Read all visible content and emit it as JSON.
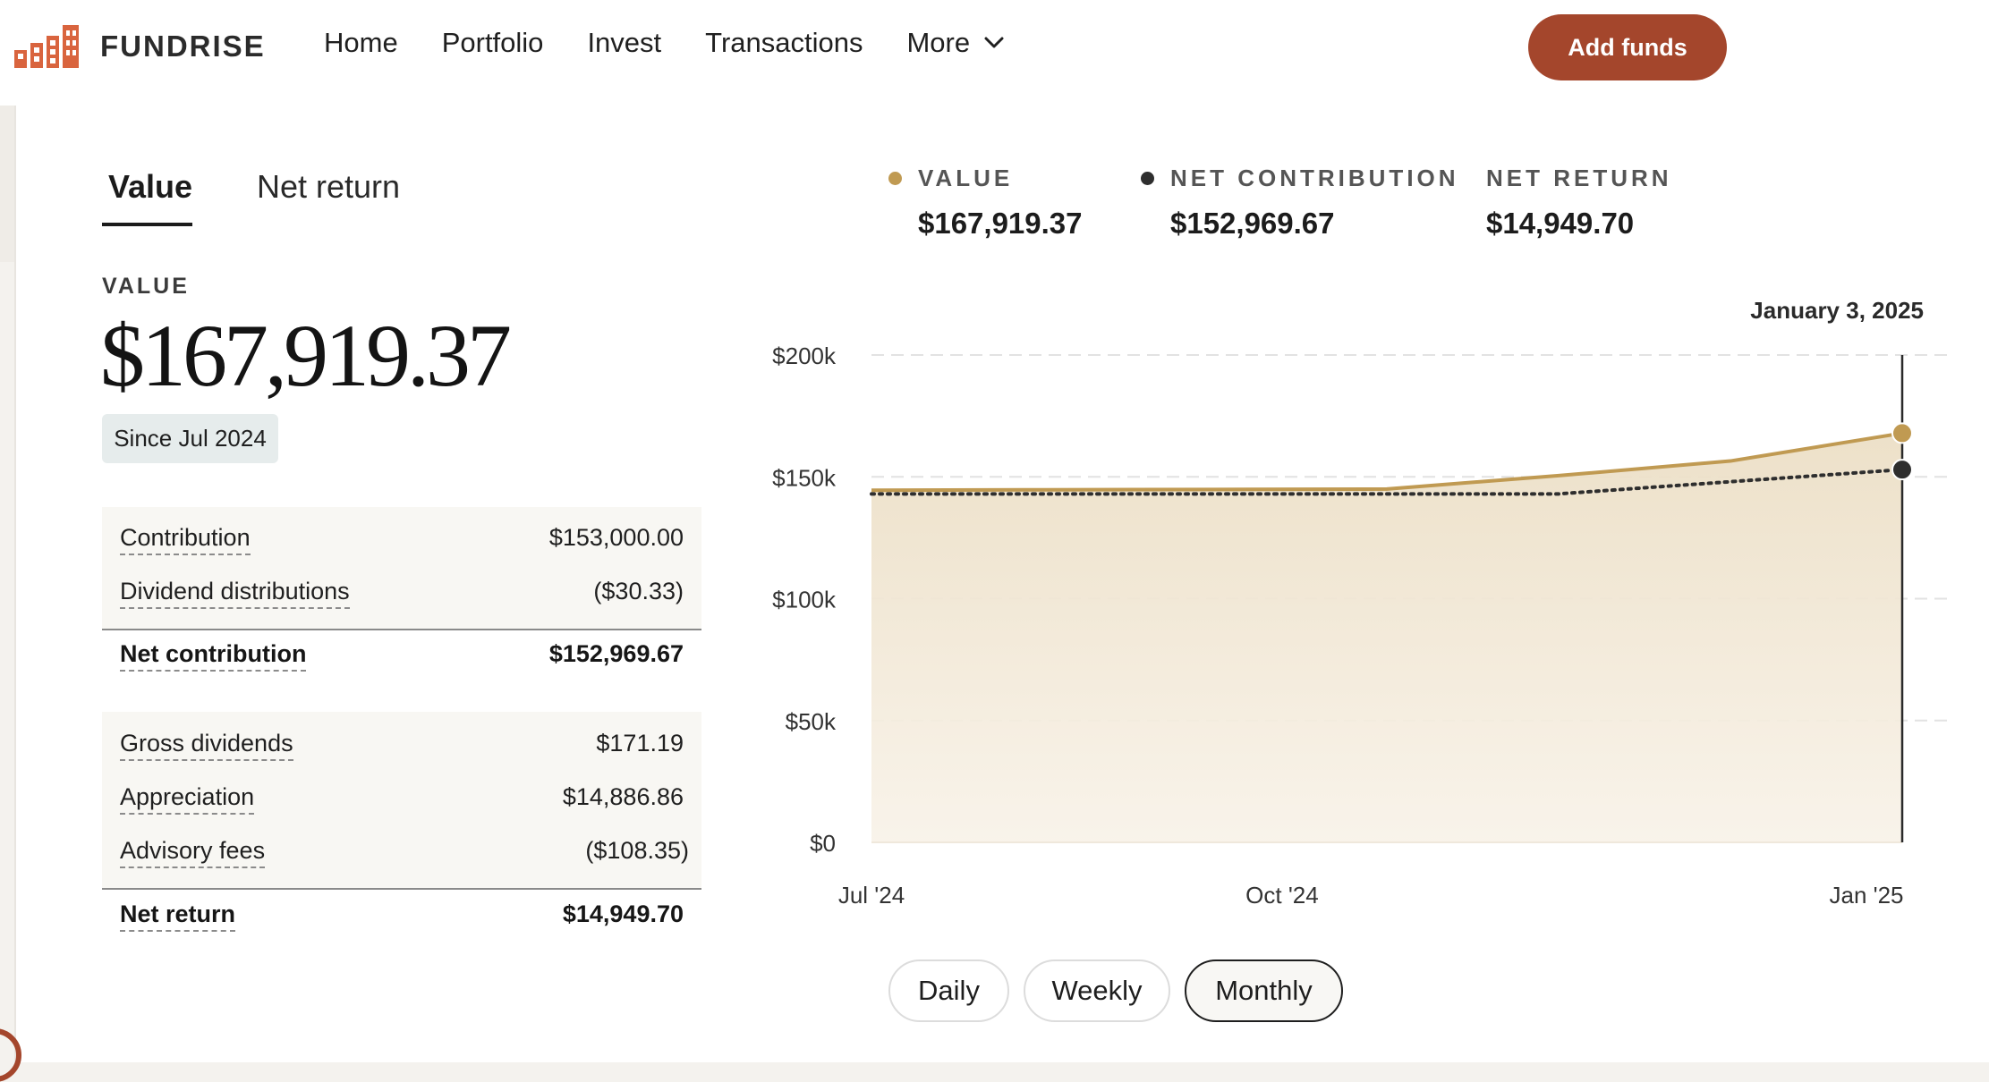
{
  "brand": {
    "name": "FUNDRISE",
    "accent": "#a4462c"
  },
  "nav": {
    "items": [
      "Home",
      "Portfolio",
      "Invest",
      "Transactions"
    ],
    "more_label": "More",
    "add_funds_label": "Add funds"
  },
  "tabs": {
    "active": "Value",
    "inactive": "Net return"
  },
  "summary": {
    "label": "VALUE",
    "value": "$167,919.37",
    "since": "Since Jul 2024"
  },
  "breakdown": {
    "contribution_rows": [
      {
        "label": "Contribution",
        "amount": "$153,000.00"
      },
      {
        "label": "Dividend distributions",
        "amount": "($30.33)"
      }
    ],
    "net_contribution": {
      "label": "Net contribution",
      "amount": "$152,969.67"
    },
    "return_rows": [
      {
        "label": "Gross dividends",
        "amount": "$171.19"
      },
      {
        "label": "Appreciation",
        "amount": "$14,886.86"
      },
      {
        "label": "Advisory fees",
        "amount": "($108.35)"
      }
    ],
    "net_return": {
      "label": "Net return",
      "amount": "$14,949.70"
    }
  },
  "legend": [
    {
      "label": "VALUE",
      "value": "$167,919.37",
      "color": "#c09a52"
    },
    {
      "label": "NET CONTRIBUTION",
      "value": "$152,969.67",
      "color": "#2e2e2e"
    },
    {
      "label": "NET RETURN",
      "value": "$14,949.70"
    }
  ],
  "chart_data": {
    "type": "area",
    "hover_date": "January 3, 2025",
    "y_ticks": [
      "$200k",
      "$150k",
      "$100k",
      "$50k",
      "$0"
    ],
    "y_tick_values": [
      200000,
      150000,
      100000,
      50000,
      0
    ],
    "x_ticks": [
      "Jul '24",
      "Oct '24",
      "Jan '25"
    ],
    "ylim": [
      0,
      200000
    ],
    "grid": true,
    "series": [
      {
        "name": "VALUE",
        "color": "#c09a52",
        "style": "solid-area",
        "x": [
          "Jul '24",
          "Aug '24",
          "Sep '24",
          "Oct '24",
          "Nov '24",
          "Dec '24",
          "Jan 3 '25"
        ],
        "values": [
          144500,
          144700,
          144800,
          145000,
          150500,
          156500,
          167919.37
        ]
      },
      {
        "name": "NET CONTRIBUTION",
        "color": "#2e2e2e",
        "style": "dotted",
        "x": [
          "Jul '24",
          "Aug '24",
          "Sep '24",
          "Oct '24",
          "Nov '24",
          "Dec '24",
          "Jan 3 '25"
        ],
        "values": [
          143000,
          143000,
          143000,
          143000,
          143000,
          148000,
          152969.67
        ]
      }
    ]
  },
  "periods": {
    "items": [
      "Daily",
      "Weekly",
      "Monthly"
    ],
    "active": "Monthly"
  }
}
